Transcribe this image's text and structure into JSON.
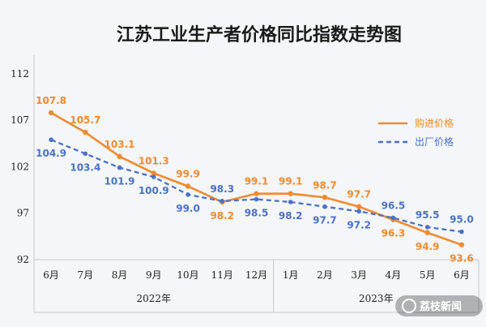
{
  "chart_data": {
    "type": "line",
    "title": "江苏工业生产者价格同比指数走势图",
    "categories": [
      "6月",
      "7月",
      "8月",
      "9月",
      "10月",
      "11月",
      "12月",
      "1月",
      "2月",
      "3月",
      "4月",
      "5月",
      "6月"
    ],
    "year_groups": [
      {
        "label": "2022年",
        "start": 0,
        "end": 6
      },
      {
        "label": "2023年",
        "start": 7,
        "end": 12
      }
    ],
    "yticks": [
      92,
      97,
      102,
      107,
      112
    ],
    "ylim": [
      92,
      114
    ],
    "legend_position": "right",
    "series": [
      {
        "name": "购进价格",
        "color": "#f28a30",
        "style": "solid",
        "values": [
          107.8,
          105.7,
          103.1,
          101.3,
          99.9,
          98.2,
          99.1,
          99.1,
          98.7,
          97.7,
          96.3,
          94.9,
          93.6
        ]
      },
      {
        "name": "出厂价格",
        "color": "#4a72c4",
        "style": "dashed",
        "values": [
          104.9,
          103.4,
          101.9,
          100.9,
          99.0,
          98.3,
          98.5,
          98.2,
          97.7,
          97.2,
          96.5,
          95.5,
          95.0
        ]
      }
    ]
  },
  "watermark": {
    "text": "荔枝新闻"
  }
}
